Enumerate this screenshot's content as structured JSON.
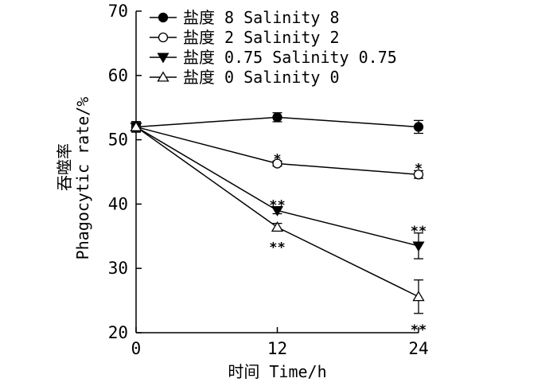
{
  "chart_data": {
    "type": "line",
    "xlabel": "时间 Time/h",
    "ylabel_cn": "吞噬率",
    "ylabel_en": "Phagocytic rate/%",
    "x_ticks": [
      "0",
      "12",
      "24"
    ],
    "y_ticks": [
      "20",
      "30",
      "40",
      "50",
      "60",
      "70"
    ],
    "xlim": [
      0,
      24
    ],
    "ylim": [
      20,
      70
    ],
    "x": [
      0,
      12,
      24
    ],
    "legend_position": "top-left",
    "series": [
      {
        "name": "盐度 8 Salinity 8",
        "marker": "filled-circle",
        "values": [
          52,
          53.5,
          52
        ],
        "errors": [
          0.8,
          0.7,
          1.0
        ],
        "sig": [
          "",
          "",
          ""
        ]
      },
      {
        "name": "盐度 2 Salinity 2",
        "marker": "open-circle",
        "values": [
          52,
          46.3,
          44.6
        ],
        "errors": [
          0.8,
          0.4,
          0.6
        ],
        "sig": [
          "",
          "*",
          "*"
        ]
      },
      {
        "name": "盐度 0.75 Salinity 0.75",
        "marker": "filled-triangle-down",
        "values": [
          52,
          39,
          33.5
        ],
        "errors": [
          0.8,
          0.5,
          2.0
        ],
        "sig": [
          "",
          "**",
          "**"
        ]
      },
      {
        "name": "盐度 0 Salinity 0",
        "marker": "open-triangle-up",
        "values": [
          52,
          36.4,
          25.6
        ],
        "errors": [
          0.8,
          0.6,
          2.6
        ],
        "sig": [
          "",
          "**",
          "**"
        ]
      }
    ]
  }
}
